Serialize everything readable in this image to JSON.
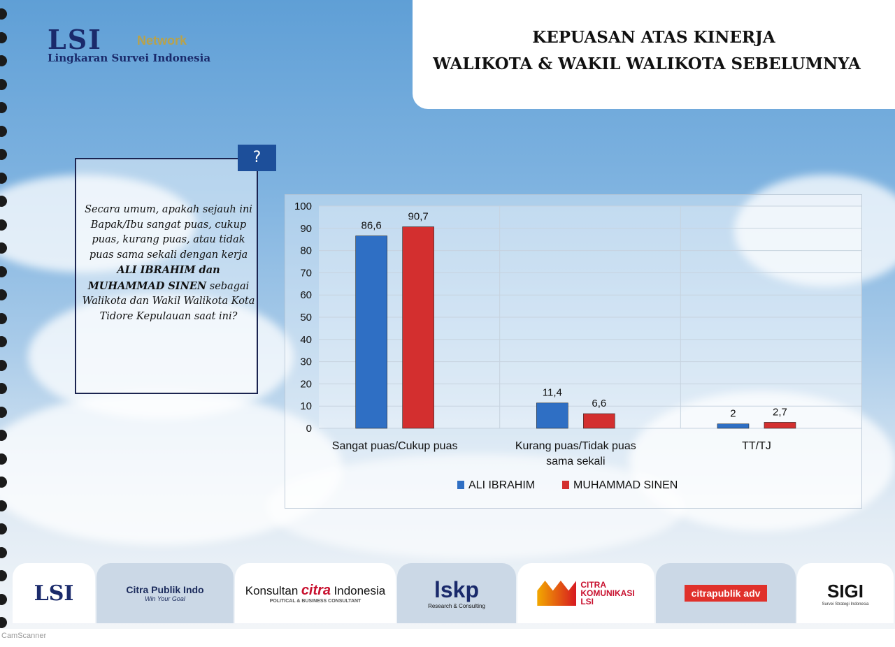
{
  "header": {
    "logo": {
      "brand": "LSI",
      "network": "Network",
      "subtitle": "Lingkaran Survei Indonesia"
    },
    "title_line1": "KEPUASAN ATAS KINERJA",
    "title_line2": "WALIKOTA & WAKIL WALIKOTA SEBELUMNYA"
  },
  "question": {
    "icon": "?",
    "part1": "Secara umum, apakah sejauh ini Bapak/Ibu sangat puas, cukup puas, kurang puas, atau tidak puas sama sekali dengan kerja ",
    "bold": "ALI IBRAHIM dan MUHAMMAD SINEN",
    "part2": " sebagai Walikota dan Wakil Walikota Kota Tidore Kepulauan saat ini?"
  },
  "chart_data": {
    "type": "bar",
    "categories": [
      "Sangat puas/Cukup puas",
      "Kurang puas/Tidak puas sama sekali",
      "TT/TJ"
    ],
    "category_lines": [
      [
        "Sangat puas/Cukup puas"
      ],
      [
        "Kurang puas/Tidak puas",
        "sama sekali"
      ],
      [
        "TT/TJ"
      ]
    ],
    "series": [
      {
        "name": "ALI IBRAHIM",
        "values": [
          86.6,
          11.4,
          2
        ],
        "labels": [
          "86,6",
          "11,4",
          "2"
        ],
        "color": "#2f6fc4"
      },
      {
        "name": "MUHAMMAD SINEN",
        "values": [
          90.7,
          6.6,
          2.7
        ],
        "labels": [
          "90,7",
          "6,6",
          "2,7"
        ],
        "color": "#d32f2f"
      }
    ],
    "ylim": [
      0,
      100
    ],
    "yticks": [
      0,
      10,
      20,
      30,
      40,
      50,
      60,
      70,
      80,
      90,
      100
    ],
    "grid": true,
    "legend_position": "bottom"
  },
  "footer": {
    "logos": [
      "LSI",
      "Citra Publik Indo",
      "Win Your Goal",
      "Konsultan",
      "citra",
      "Indonesia",
      "POLITICAL & BUSINESS CONSULTANT",
      "lskp",
      "Research & Consulting",
      "CITRA",
      "KOMUNIKASI",
      "LSI",
      "citrapublik adv",
      "SIGI",
      "Survei Strategi Indonesia"
    ]
  },
  "watermark": "CamScanner"
}
